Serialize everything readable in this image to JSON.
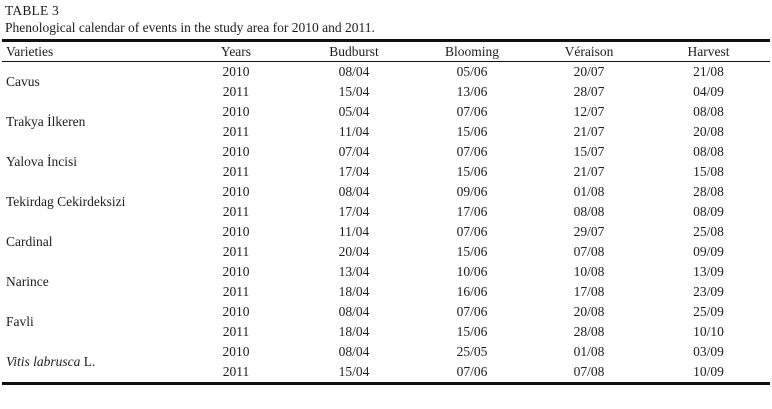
{
  "page": {
    "label": "TABLE 3",
    "caption": "Phenological calendar of events in the study area for 2010 and 2011."
  },
  "table": {
    "columns": [
      "Varieties",
      "Years",
      "Budburst",
      "Blooming",
      "Véraison",
      "Harvest"
    ],
    "rows": [
      {
        "variety": "Cavus",
        "italic": false,
        "suffix": "",
        "years": [
          {
            "year": "2010",
            "values": [
              "08/04",
              "05/06",
              "20/07",
              "21/08"
            ]
          },
          {
            "year": "2011",
            "values": [
              "15/04",
              "13/06",
              "28/07",
              "04/09"
            ]
          }
        ]
      },
      {
        "variety": "Trakya İlkeren",
        "italic": false,
        "suffix": "",
        "years": [
          {
            "year": "2010",
            "values": [
              "05/04",
              "07/06",
              "12/07",
              "08/08"
            ]
          },
          {
            "year": "2011",
            "values": [
              "11/04",
              "15/06",
              "21/07",
              "20/08"
            ]
          }
        ]
      },
      {
        "variety": "Yalova İncisi",
        "italic": false,
        "suffix": "",
        "years": [
          {
            "year": "2010",
            "values": [
              "07/04",
              "07/06",
              "15/07",
              "08/08"
            ]
          },
          {
            "year": "2011",
            "values": [
              "17/04",
              "15/06",
              "21/07",
              "15/08"
            ]
          }
        ]
      },
      {
        "variety": "Tekirdag Cekirdeksizi",
        "italic": false,
        "suffix": "",
        "years": [
          {
            "year": "2010",
            "values": [
              "08/04",
              "09/06",
              "01/08",
              "28/08"
            ]
          },
          {
            "year": "2011",
            "values": [
              "17/04",
              "17/06",
              "08/08",
              "08/09"
            ]
          }
        ]
      },
      {
        "variety": "Cardinal",
        "italic": false,
        "suffix": "",
        "years": [
          {
            "year": "2010",
            "values": [
              "11/04",
              "07/06",
              "29/07",
              "25/08"
            ]
          },
          {
            "year": "2011",
            "values": [
              "20/04",
              "15/06",
              "07/08",
              "09/09"
            ]
          }
        ]
      },
      {
        "variety": "Narince",
        "italic": false,
        "suffix": "",
        "years": [
          {
            "year": "2010",
            "values": [
              "13/04",
              "10/06",
              "10/08",
              "13/09"
            ]
          },
          {
            "year": "2011",
            "values": [
              "18/04",
              "16/06",
              "17/08",
              "23/09"
            ]
          }
        ]
      },
      {
        "variety": "Favli",
        "italic": false,
        "suffix": "",
        "years": [
          {
            "year": "2010",
            "values": [
              "08/04",
              "07/06",
              "20/08",
              "25/09"
            ]
          },
          {
            "year": "2011",
            "values": [
              "18/04",
              "15/06",
              "28/08",
              "10/10"
            ]
          }
        ]
      },
      {
        "variety": "Vitis labrusca",
        "italic": true,
        "suffix": " L.",
        "years": [
          {
            "year": "2010",
            "values": [
              "08/04",
              "25/05",
              "01/08",
              "03/09"
            ]
          },
          {
            "year": "2011",
            "values": [
              "15/04",
              "07/06",
              "07/08",
              "10/09"
            ]
          }
        ]
      }
    ]
  }
}
